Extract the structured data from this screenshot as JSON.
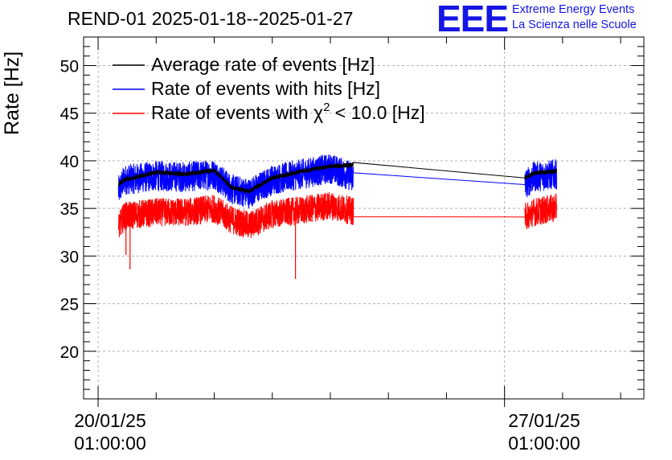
{
  "header": {
    "title": "REND-01 2025-01-18--2025-01-27",
    "logo": "EEE",
    "logo_line1": "Extreme Energy Events",
    "logo_line2": "La Scienza nelle Scuole"
  },
  "colors": {
    "average": "#000000",
    "hits": "#0000ff",
    "chi2": "#ff0000",
    "grid": "#b0b0b0",
    "logo": "#1515e6"
  },
  "chart_data": {
    "type": "line",
    "title": "REND-01 2025-01-18--2025-01-27",
    "xlabel": "",
    "ylabel": "Rate [Hz]",
    "x_unit": "days since 20/01/25 01:00:00",
    "xlim": [
      -0.25,
      9.4
    ],
    "ylim": [
      15,
      53
    ],
    "yticks": [
      20,
      25,
      30,
      35,
      40,
      45,
      50
    ],
    "yticks_labels": [
      "20",
      "25",
      "30",
      "35",
      "40",
      "45",
      "50"
    ],
    "xticks": [
      {
        "x": 0,
        "label_line1": "20/01/25",
        "label_line2": "01:00:00"
      },
      {
        "x": 7,
        "label_line1": "27/01/25",
        "label_line2": "01:00:00"
      }
    ],
    "grid": true,
    "legend_position": "top-left",
    "series": [
      {
        "name": "Average rate of events [Hz]",
        "legend_label": "Average rate of events [Hz]",
        "color": "#000000",
        "x": [
          0.35,
          0.45,
          1.0,
          1.5,
          2.0,
          2.3,
          2.6,
          3.0,
          3.5,
          4.0,
          4.4,
          7.35,
          7.5,
          7.9
        ],
        "y": [
          37.5,
          38.0,
          38.8,
          38.6,
          39.0,
          37.2,
          36.8,
          38.2,
          38.9,
          39.4,
          39.6,
          38.2,
          38.7,
          38.9
        ],
        "noise": 0.7
      },
      {
        "name": "Rate of events with hits [Hz]",
        "legend_label": "Rate of events with hits [Hz]",
        "color": "#0000ff",
        "x": [
          0.35,
          0.45,
          1.0,
          1.5,
          2.0,
          2.3,
          2.6,
          3.0,
          3.5,
          4.0,
          4.4,
          7.35,
          7.5,
          7.9
        ],
        "y": [
          36.8,
          38.0,
          38.4,
          38.3,
          38.6,
          37.0,
          36.6,
          38.0,
          38.6,
          39.2,
          38.3,
          37.5,
          38.3,
          38.6
        ],
        "noise": 1.6
      },
      {
        "name": "Rate of events with χ² < 10.0 [Hz]",
        "legend_label": "Rate of events with χ",
        "legend_sup": "2",
        "legend_suffix": " < 10.0 [Hz]",
        "color": "#ff0000",
        "x": [
          0.35,
          0.45,
          1.0,
          1.5,
          2.0,
          2.3,
          2.6,
          3.0,
          3.5,
          4.0,
          4.4,
          7.35,
          7.5,
          7.9
        ],
        "y": [
          33.0,
          34.2,
          34.6,
          34.6,
          35.0,
          33.8,
          33.2,
          34.4,
          34.8,
          35.3,
          34.7,
          34.1,
          34.6,
          35.1
        ],
        "noise": 1.5,
        "outliers": [
          {
            "x": 0.55,
            "y": 28.6
          },
          {
            "x": 3.4,
            "y": 27.6
          },
          {
            "x": 0.48,
            "y": 30.1
          }
        ]
      }
    ]
  }
}
